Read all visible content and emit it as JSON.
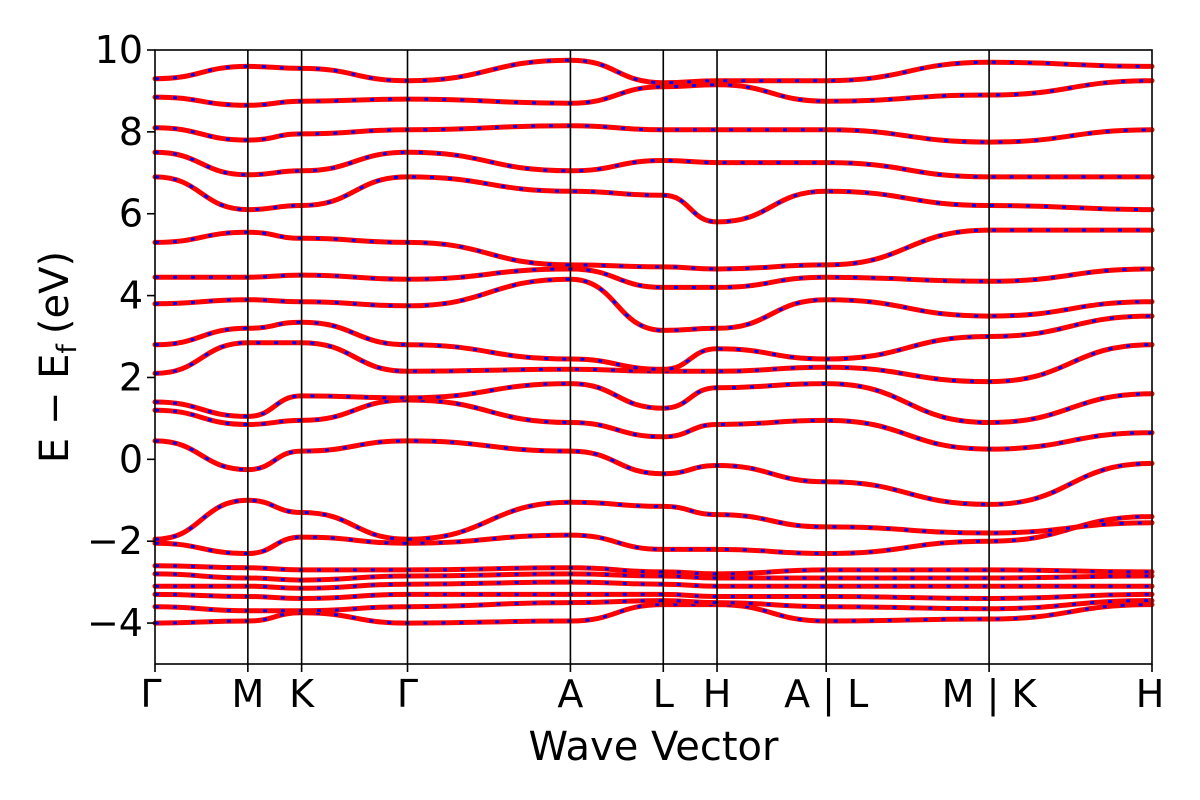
{
  "chart_data": {
    "type": "line",
    "title": "",
    "xlabel": "Wave Vector",
    "ylabel": "E − E",
    "ylabel_subscript": "f",
    "ylabel_unit": "(eV)",
    "ylim": [
      -5,
      10
    ],
    "yticks": [
      -4,
      -2,
      0,
      2,
      4,
      6,
      8,
      10
    ],
    "ytick_labels": [
      "−4",
      "−2",
      "0",
      "2",
      "4",
      "6",
      "8",
      "10"
    ],
    "grid": false,
    "legend": "none",
    "kpath": {
      "positions": [
        0,
        0.57,
        0.9,
        1.55,
        2.55,
        3.12,
        3.45,
        4.12,
        5.12,
        6.12
      ],
      "labels": [
        "Γ",
        "M",
        "K",
        "Γ",
        "A",
        "L",
        "H",
        "A | L",
        "M | K",
        "H"
      ],
      "xlim": [
        0,
        6.12
      ]
    },
    "series_colors": {
      "line": "#ff0000",
      "dashed_overlay": "#0000ff"
    },
    "series": [
      {
        "x": [
          0,
          0.57,
          0.9,
          1.55,
          2.55,
          3.12,
          3.45,
          4.12,
          5.12,
          6.12
        ],
        "y": [
          -4.0,
          -3.95,
          -3.75,
          -4.0,
          -3.95,
          -3.55,
          -3.55,
          -3.95,
          -3.9,
          -3.55
        ]
      },
      {
        "x": [
          0,
          0.57,
          0.9,
          1.55,
          2.55,
          3.12,
          3.45,
          4.12,
          5.12,
          6.12
        ],
        "y": [
          -3.6,
          -3.7,
          -3.7,
          -3.6,
          -3.5,
          -3.45,
          -3.5,
          -3.6,
          -3.65,
          -3.45
        ]
      },
      {
        "x": [
          0,
          0.57,
          0.9,
          1.55,
          2.55,
          3.12,
          3.45,
          4.12,
          5.12,
          6.12
        ],
        "y": [
          -3.3,
          -3.35,
          -3.4,
          -3.3,
          -3.3,
          -3.3,
          -3.35,
          -3.35,
          -3.4,
          -3.3
        ]
      },
      {
        "x": [
          0,
          0.57,
          0.9,
          1.55,
          2.55,
          3.12,
          3.45,
          4.12,
          5.12,
          6.12
        ],
        "y": [
          -3.1,
          -3.1,
          -3.15,
          -3.05,
          -3.0,
          -3.05,
          -3.1,
          -3.1,
          -3.1,
          -3.1
        ]
      },
      {
        "x": [
          0,
          0.57,
          0.9,
          1.55,
          2.55,
          3.12,
          3.45,
          4.12,
          5.12,
          6.12
        ],
        "y": [
          -2.8,
          -2.9,
          -2.95,
          -2.85,
          -2.8,
          -2.85,
          -2.9,
          -2.9,
          -2.9,
          -2.85
        ]
      },
      {
        "x": [
          0,
          0.57,
          0.9,
          1.55,
          2.55,
          3.12,
          3.45,
          4.12,
          5.12,
          6.12
        ],
        "y": [
          -2.6,
          -2.65,
          -2.7,
          -2.7,
          -2.65,
          -2.75,
          -2.8,
          -2.7,
          -2.7,
          -2.75
        ]
      },
      {
        "x": [
          0,
          0.57,
          0.9,
          1.55,
          2.55,
          3.12,
          3.45,
          4.12,
          5.12,
          6.12
        ],
        "y": [
          -2.05,
          -2.3,
          -1.9,
          -2.05,
          -1.85,
          -2.2,
          -2.2,
          -2.3,
          -2.0,
          -1.4
        ]
      },
      {
        "x": [
          0,
          0.57,
          0.9,
          1.55,
          2.55,
          3.12,
          3.45,
          4.12,
          5.12,
          6.12
        ],
        "y": [
          -1.95,
          -1.0,
          -1.3,
          -1.95,
          -1.05,
          -1.15,
          -1.35,
          -1.65,
          -1.8,
          -1.55
        ]
      },
      {
        "x": [
          0,
          0.57,
          0.9,
          1.55,
          2.55,
          3.12,
          3.45,
          4.12,
          5.12,
          6.12
        ],
        "y": [
          0.45,
          -0.25,
          0.2,
          0.45,
          0.2,
          -0.35,
          -0.15,
          -0.55,
          -1.1,
          -0.1
        ]
      },
      {
        "x": [
          0,
          0.57,
          0.9,
          1.55,
          2.55,
          3.12,
          3.45,
          4.12,
          5.12,
          6.12
        ],
        "y": [
          1.2,
          0.85,
          0.95,
          1.45,
          0.9,
          0.55,
          0.85,
          0.95,
          0.25,
          0.65
        ]
      },
      {
        "x": [
          0,
          0.57,
          0.9,
          1.55,
          2.55,
          3.12,
          3.45,
          4.12,
          5.12,
          6.12
        ],
        "y": [
          1.4,
          1.05,
          1.55,
          1.5,
          1.85,
          1.25,
          1.75,
          1.85,
          0.9,
          1.6
        ]
      },
      {
        "x": [
          0,
          0.57,
          0.9,
          1.55,
          2.55,
          3.12,
          3.45,
          4.12,
          5.12,
          6.12
        ],
        "y": [
          2.1,
          2.85,
          2.85,
          2.15,
          2.2,
          2.15,
          2.15,
          2.25,
          1.9,
          2.8
        ]
      },
      {
        "x": [
          0,
          0.57,
          0.9,
          1.55,
          2.55,
          3.12,
          3.45,
          4.12,
          5.12,
          6.12
        ],
        "y": [
          2.8,
          3.2,
          3.35,
          2.8,
          2.45,
          2.2,
          2.7,
          2.45,
          3.0,
          3.5
        ]
      },
      {
        "x": [
          0,
          0.57,
          0.9,
          1.55,
          2.55,
          3.12,
          3.45,
          4.12,
          5.12,
          6.12
        ],
        "y": [
          3.8,
          3.9,
          3.85,
          3.75,
          4.4,
          3.15,
          3.2,
          3.9,
          3.5,
          3.85
        ]
      },
      {
        "x": [
          0,
          0.57,
          0.9,
          1.55,
          2.55,
          3.12,
          3.45,
          4.12,
          5.12,
          6.12
        ],
        "y": [
          4.45,
          4.45,
          4.5,
          4.4,
          4.65,
          4.2,
          4.2,
          4.45,
          4.35,
          4.65
        ]
      },
      {
        "x": [
          0,
          0.57,
          0.9,
          1.55,
          2.55,
          3.12,
          3.45,
          4.12,
          5.12,
          6.12
        ],
        "y": [
          5.3,
          5.55,
          5.4,
          5.3,
          4.75,
          4.7,
          4.65,
          4.75,
          5.6,
          5.6
        ]
      },
      {
        "x": [
          0,
          0.57,
          0.9,
          1.55,
          2.55,
          3.12,
          3.45,
          4.12,
          5.12,
          6.12
        ],
        "y": [
          6.9,
          6.1,
          6.2,
          6.9,
          6.55,
          6.45,
          5.8,
          6.55,
          6.2,
          6.1
        ]
      },
      {
        "x": [
          0,
          0.57,
          0.9,
          1.55,
          2.55,
          3.12,
          3.45,
          4.12,
          5.12,
          6.12
        ],
        "y": [
          7.5,
          6.95,
          7.05,
          7.5,
          7.05,
          7.3,
          7.25,
          7.25,
          6.9,
          6.9
        ]
      },
      {
        "x": [
          0,
          0.57,
          0.9,
          1.55,
          2.55,
          3.12,
          3.45,
          4.12,
          5.12,
          6.12
        ],
        "y": [
          8.1,
          7.8,
          7.95,
          8.05,
          8.15,
          8.05,
          8.05,
          8.05,
          7.75,
          8.05
        ]
      },
      {
        "x": [
          0,
          0.57,
          0.9,
          1.55,
          2.55,
          3.12,
          3.45,
          4.12,
          5.12,
          6.12
        ],
        "y": [
          8.85,
          8.65,
          8.75,
          8.8,
          8.7,
          9.1,
          9.15,
          8.75,
          8.9,
          9.25
        ]
      },
      {
        "x": [
          0,
          0.57,
          0.9,
          1.55,
          2.55,
          3.12,
          3.45,
          4.12,
          5.12,
          6.12
        ],
        "y": [
          9.3,
          9.6,
          9.55,
          9.25,
          9.75,
          9.2,
          9.25,
          9.25,
          9.7,
          9.6
        ]
      }
    ]
  }
}
